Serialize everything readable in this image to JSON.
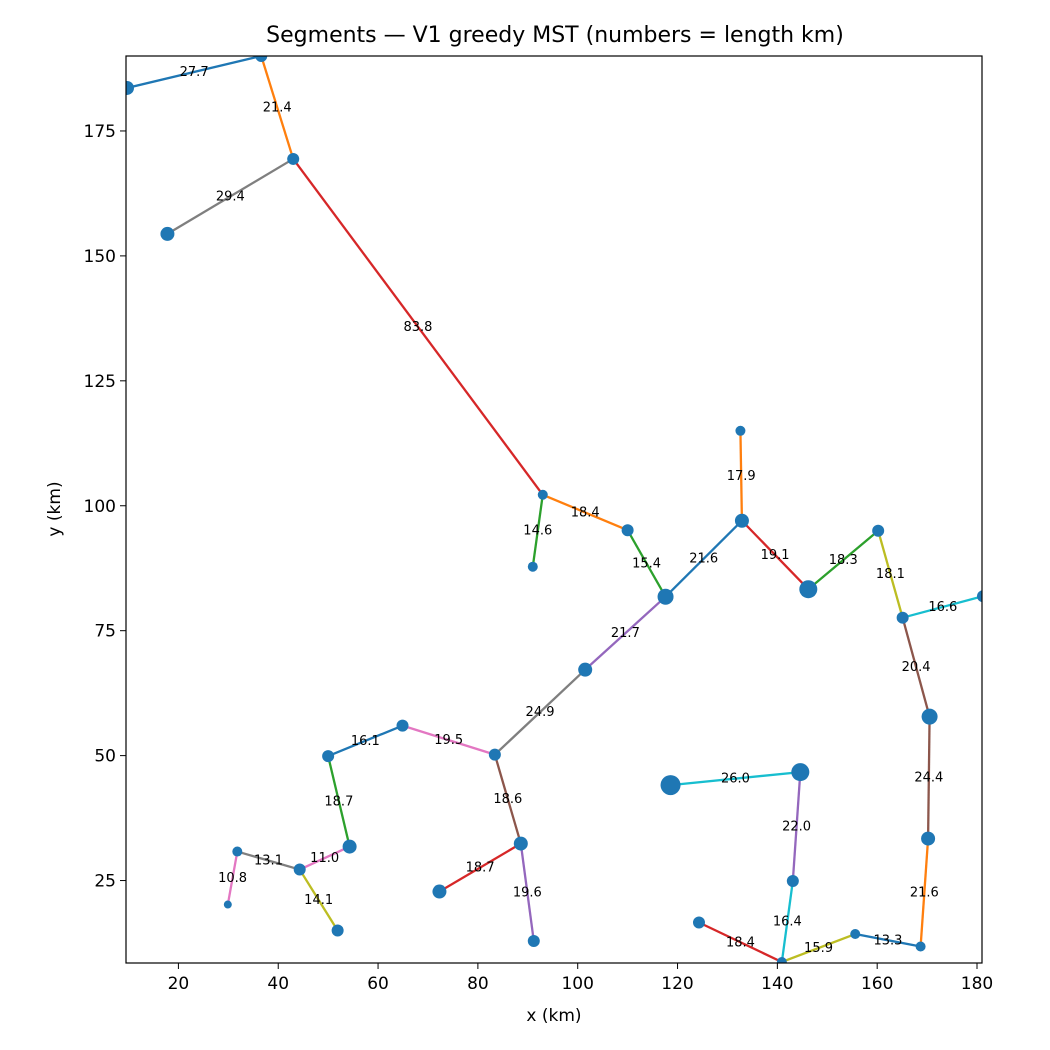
{
  "chart_data": {
    "type": "scatter",
    "title": "Segments — V1 greedy MST (numbers = length km)",
    "xlabel": "x (km)",
    "ylabel": "y (km)",
    "xlim": [
      9.5,
      181
    ],
    "ylim": [
      8.5,
      190
    ],
    "xticks": [
      20,
      40,
      60,
      80,
      100,
      120,
      140,
      160,
      180
    ],
    "yticks": [
      25,
      50,
      75,
      100,
      125,
      150,
      175
    ],
    "grid": false,
    "point_color": "#1f77b4",
    "nodes": [
      {
        "x": 9.7,
        "y": 183.6,
        "s": 7
      },
      {
        "x": 36.6,
        "y": 190.0,
        "s": 6
      },
      {
        "x": 43.0,
        "y": 169.4,
        "s": 6
      },
      {
        "x": 17.8,
        "y": 154.4,
        "s": 7
      },
      {
        "x": 93.0,
        "y": 102.2,
        "s": 5
      },
      {
        "x": 91.0,
        "y": 87.8,
        "s": 5
      },
      {
        "x": 110.0,
        "y": 95.1,
        "s": 6
      },
      {
        "x": 117.6,
        "y": 81.8,
        "s": 8
      },
      {
        "x": 132.6,
        "y": 115.0,
        "s": 5
      },
      {
        "x": 132.9,
        "y": 97.0,
        "s": 7
      },
      {
        "x": 146.2,
        "y": 83.3,
        "s": 9
      },
      {
        "x": 160.2,
        "y": 95.0,
        "s": 6
      },
      {
        "x": 165.1,
        "y": 77.6,
        "s": 6
      },
      {
        "x": 181.2,
        "y": 81.9,
        "s": 6
      },
      {
        "x": 170.5,
        "y": 57.8,
        "s": 8
      },
      {
        "x": 170.2,
        "y": 33.4,
        "s": 7
      },
      {
        "x": 168.7,
        "y": 11.8,
        "s": 5
      },
      {
        "x": 155.6,
        "y": 14.3,
        "s": 5
      },
      {
        "x": 140.9,
        "y": 8.7,
        "s": 5
      },
      {
        "x": 143.1,
        "y": 24.9,
        "s": 6
      },
      {
        "x": 144.6,
        "y": 46.7,
        "s": 9
      },
      {
        "x": 118.6,
        "y": 44.1,
        "s": 10
      },
      {
        "x": 124.3,
        "y": 16.6,
        "s": 6
      },
      {
        "x": 101.5,
        "y": 67.2,
        "s": 7
      },
      {
        "x": 83.4,
        "y": 50.2,
        "s": 6
      },
      {
        "x": 88.6,
        "y": 32.4,
        "s": 7
      },
      {
        "x": 91.2,
        "y": 12.9,
        "s": 6
      },
      {
        "x": 72.3,
        "y": 22.8,
        "s": 7
      },
      {
        "x": 64.9,
        "y": 56.0,
        "s": 6
      },
      {
        "x": 50.0,
        "y": 49.9,
        "s": 6
      },
      {
        "x": 54.3,
        "y": 31.8,
        "s": 7
      },
      {
        "x": 44.3,
        "y": 27.2,
        "s": 6
      },
      {
        "x": 51.9,
        "y": 15.0,
        "s": 6
      },
      {
        "x": 31.8,
        "y": 30.8,
        "s": 5
      },
      {
        "x": 29.9,
        "y": 20.2,
        "s": 4
      }
    ],
    "segments": [
      {
        "from": 0,
        "to": 1,
        "length": "27.7",
        "color": "#1f77b4"
      },
      {
        "from": 1,
        "to": 2,
        "length": "21.4",
        "color": "#ff7f0e"
      },
      {
        "from": 2,
        "to": 3,
        "length": "29.4",
        "color": "#7f7f7f"
      },
      {
        "from": 2,
        "to": 4,
        "length": "83.8",
        "color": "#d62728"
      },
      {
        "from": 4,
        "to": 5,
        "length": "14.6",
        "color": "#2ca02c"
      },
      {
        "from": 4,
        "to": 6,
        "length": "18.4",
        "color": "#ff7f0e"
      },
      {
        "from": 6,
        "to": 7,
        "length": "15.4",
        "color": "#2ca02c"
      },
      {
        "from": 7,
        "to": 9,
        "length": "21.6",
        "color": "#1f77b4"
      },
      {
        "from": 8,
        "to": 9,
        "length": "17.9",
        "color": "#ff7f0e"
      },
      {
        "from": 9,
        "to": 10,
        "length": "19.1",
        "color": "#d62728"
      },
      {
        "from": 10,
        "to": 11,
        "length": "18.3",
        "color": "#2ca02c"
      },
      {
        "from": 11,
        "to": 12,
        "length": "18.1",
        "color": "#bcbd22"
      },
      {
        "from": 12,
        "to": 13,
        "length": "16.6",
        "color": "#17becf"
      },
      {
        "from": 12,
        "to": 14,
        "length": "20.4",
        "color": "#8c564b"
      },
      {
        "from": 14,
        "to": 15,
        "length": "24.4",
        "color": "#8c564b"
      },
      {
        "from": 15,
        "to": 16,
        "length": "21.6",
        "color": "#ff7f0e"
      },
      {
        "from": 16,
        "to": 17,
        "length": "13.3",
        "color": "#1f77b4"
      },
      {
        "from": 17,
        "to": 18,
        "length": "15.9",
        "color": "#bcbd22"
      },
      {
        "from": 18,
        "to": 22,
        "length": "18.4",
        "color": "#d62728"
      },
      {
        "from": 18,
        "to": 19,
        "length": "16.4",
        "color": "#17becf"
      },
      {
        "from": 19,
        "to": 20,
        "length": "22.0",
        "color": "#9467bd"
      },
      {
        "from": 20,
        "to": 21,
        "length": "26.0",
        "color": "#17becf"
      },
      {
        "from": 7,
        "to": 23,
        "length": "21.7",
        "color": "#9467bd"
      },
      {
        "from": 23,
        "to": 24,
        "length": "24.9",
        "color": "#7f7f7f"
      },
      {
        "from": 24,
        "to": 25,
        "length": "18.6",
        "color": "#8c564b"
      },
      {
        "from": 25,
        "to": 26,
        "length": "19.6",
        "color": "#9467bd"
      },
      {
        "from": 25,
        "to": 27,
        "length": "18.7",
        "color": "#d62728"
      },
      {
        "from": 24,
        "to": 28,
        "length": "19.5",
        "color": "#e377c2"
      },
      {
        "from": 28,
        "to": 29,
        "length": "16.1",
        "color": "#1f77b4"
      },
      {
        "from": 29,
        "to": 30,
        "length": "18.7",
        "color": "#2ca02c"
      },
      {
        "from": 30,
        "to": 31,
        "length": "11.0",
        "color": "#e377c2"
      },
      {
        "from": 31,
        "to": 32,
        "length": "14.1",
        "color": "#bcbd22"
      },
      {
        "from": 31,
        "to": 33,
        "length": "13.1",
        "color": "#7f7f7f"
      },
      {
        "from": 33,
        "to": 34,
        "length": "10.8",
        "color": "#e377c2"
      }
    ]
  }
}
